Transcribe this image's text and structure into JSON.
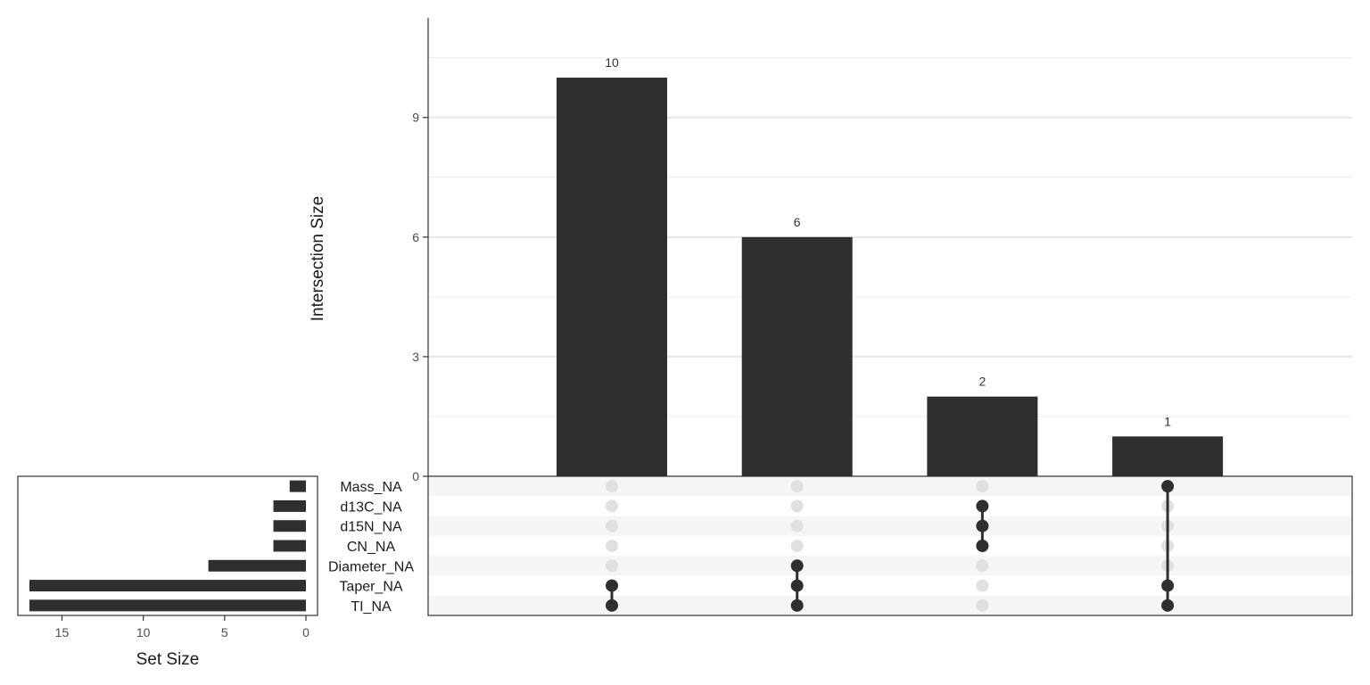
{
  "chart_data": {
    "type": "bar",
    "chart_kind": "upset",
    "intersection_axis": {
      "title": "Intersection Size",
      "ylim": [
        0,
        11.5
      ],
      "ticks": [
        0,
        3,
        6,
        9
      ],
      "grid": true
    },
    "set_size_axis": {
      "title": "Set Size",
      "xlim": [
        0,
        18
      ],
      "ticks": [
        15,
        10,
        5,
        0
      ],
      "reversed": true
    },
    "sets": [
      {
        "name": "Mass_NA",
        "size": 1
      },
      {
        "name": "d13C_NA",
        "size": 2
      },
      {
        "name": "d15N_NA",
        "size": 2
      },
      {
        "name": "CN_NA",
        "size": 2
      },
      {
        "name": "Diameter_NA",
        "size": 6
      },
      {
        "name": "Taper_NA",
        "size": 17
      },
      {
        "name": "TI_NA",
        "size": 17
      }
    ],
    "intersections": [
      {
        "value": 10,
        "label": "10",
        "sets": [
          "Taper_NA",
          "TI_NA"
        ]
      },
      {
        "value": 6,
        "label": "6",
        "sets": [
          "Diameter_NA",
          "Taper_NA",
          "TI_NA"
        ]
      },
      {
        "value": 2,
        "label": "2",
        "sets": [
          "d13C_NA",
          "d15N_NA",
          "CN_NA"
        ]
      },
      {
        "value": 1,
        "label": "1",
        "sets": [
          "Mass_NA",
          "Taper_NA",
          "TI_NA"
        ]
      }
    ],
    "colors": {
      "bar": "#2f2f2f",
      "dot_active": "#2f2f2f",
      "dot_inactive": "#e0e0e0",
      "stripe": "#f5f5f5",
      "grid": "#e6e6e6"
    }
  }
}
